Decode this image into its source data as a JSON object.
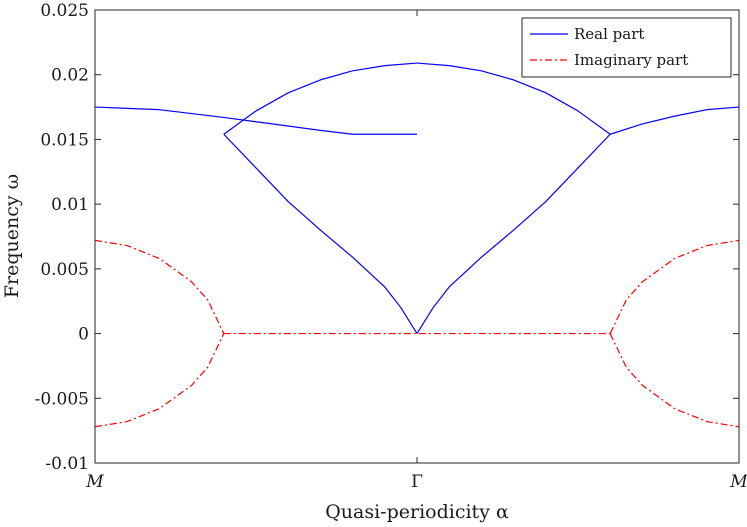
{
  "chart_data": {
    "type": "line",
    "title": "",
    "xlabel": "Quasi-periodicity α",
    "ylabel": "Frequency ω",
    "x_ticks": [
      "M",
      "Γ",
      "M"
    ],
    "y_ticks": [
      "0.025",
      "0.02",
      "0.015",
      "0.01",
      "0.005",
      "0",
      "-0.005",
      "-0.01"
    ],
    "y_tick_values": [
      0.025,
      0.02,
      0.015,
      0.01,
      0.005,
      0,
      -0.005,
      -0.01
    ],
    "xlim": [
      -1,
      1
    ],
    "ylim": [
      -0.01,
      0.025
    ],
    "grid": false,
    "legend_position": "top-right",
    "series": [
      {
        "name": "Real part",
        "color": "#0000ff",
        "style": "solid",
        "segments": [
          {
            "x": [
              -1.0,
              -0.8,
              -0.6,
              -0.45,
              -0.3,
              -0.2,
              -0.1,
              0.0
            ],
            "y": [
              0.0175,
              0.0173,
              0.0167,
              0.0162,
              0.0157,
              0.0154,
              0.0154,
              0.0154
            ]
          },
          {
            "x": [
              -0.6,
              -0.5,
              -0.4,
              -0.3,
              -0.2,
              -0.1,
              0.0
            ],
            "y": [
              0.0154,
              0.0172,
              0.0186,
              0.0196,
              0.0203,
              0.0207,
              0.0209
            ]
          },
          {
            "x": [
              -0.6,
              -0.5,
              -0.4,
              -0.3,
              -0.2,
              -0.1,
              -0.05,
              0.0
            ],
            "y": [
              0.0154,
              0.0128,
              0.0102,
              0.008,
              0.0059,
              0.0036,
              0.002,
              0.0
            ]
          },
          {
            "x": [
              0.0,
              0.05,
              0.1,
              0.2,
              0.3,
              0.4,
              0.5,
              0.6
            ],
            "y": [
              0.0,
              0.002,
              0.0036,
              0.0059,
              0.008,
              0.0102,
              0.0128,
              0.0154
            ]
          },
          {
            "x": [
              0.0,
              0.1,
              0.2,
              0.3,
              0.4,
              0.5,
              0.6
            ],
            "y": [
              0.0209,
              0.0207,
              0.0203,
              0.0196,
              0.0186,
              0.0172,
              0.0154
            ]
          },
          {
            "x": [
              0.6,
              0.7,
              0.8,
              0.9,
              1.0
            ],
            "y": [
              0.0154,
              0.0162,
              0.0168,
              0.0173,
              0.0175
            ]
          }
        ]
      },
      {
        "name": "Imaginary part",
        "color": "#ff0000",
        "style": "dashdot",
        "segments": [
          {
            "x": [
              -1.0,
              -0.9,
              -0.8,
              -0.7,
              -0.65,
              -0.6
            ],
            "y": [
              0.0072,
              0.0068,
              0.0058,
              0.004,
              0.0026,
              0.0
            ]
          },
          {
            "x": [
              -1.0,
              -0.9,
              -0.8,
              -0.7,
              -0.65,
              -0.6
            ],
            "y": [
              -0.0072,
              -0.0068,
              -0.0058,
              -0.004,
              -0.0026,
              0.0
            ]
          },
          {
            "x": [
              -0.6,
              0.6
            ],
            "y": [
              0.0,
              0.0
            ]
          },
          {
            "x": [
              0.6,
              0.65,
              0.7,
              0.8,
              0.9,
              1.0
            ],
            "y": [
              0.0,
              0.0026,
              0.004,
              0.0058,
              0.0068,
              0.0072
            ]
          },
          {
            "x": [
              0.6,
              0.65,
              0.7,
              0.8,
              0.9,
              1.0
            ],
            "y": [
              0.0,
              -0.0026,
              -0.004,
              -0.0058,
              -0.0068,
              -0.0072
            ]
          }
        ]
      }
    ]
  }
}
